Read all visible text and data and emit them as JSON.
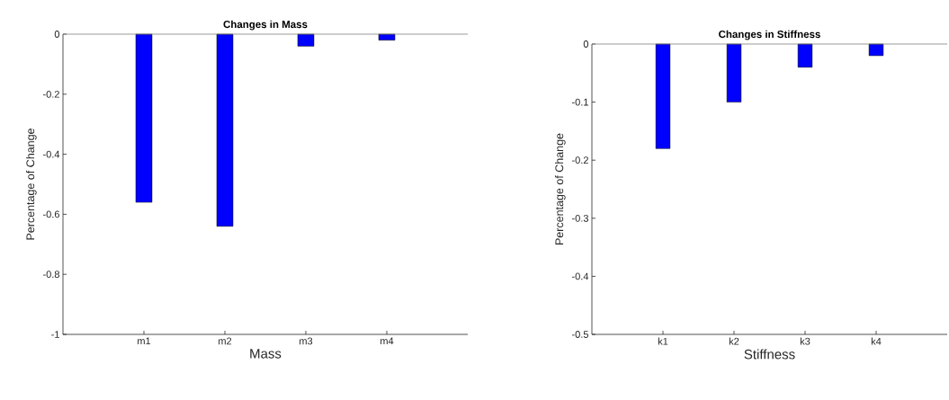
{
  "chart_data": [
    {
      "type": "bar",
      "title": "Changes in Mass",
      "xlabel": "Mass",
      "ylabel": "Percentage of Change",
      "categories": [
        "m1",
        "m2",
        "m3",
        "m4"
      ],
      "values": [
        -0.56,
        -0.64,
        -0.04,
        -0.02
      ],
      "color": "#0000ff",
      "ylim": [
        -1,
        0
      ],
      "yticks": [
        -1,
        -0.8,
        -0.6,
        -0.4,
        -0.2,
        0
      ]
    },
    {
      "type": "bar",
      "title": "Changes in Stiffness",
      "xlabel": "Stiffness",
      "ylabel": "Percentage of Change",
      "categories": [
        "k1",
        "k2",
        "k3",
        "k4"
      ],
      "values": [
        -0.18,
        -0.1,
        -0.04,
        -0.02
      ],
      "color": "#0000ff",
      "ylim": [
        -0.5,
        0
      ],
      "yticks": [
        -0.5,
        -0.4,
        -0.3,
        -0.2,
        -0.1,
        0
      ]
    }
  ]
}
